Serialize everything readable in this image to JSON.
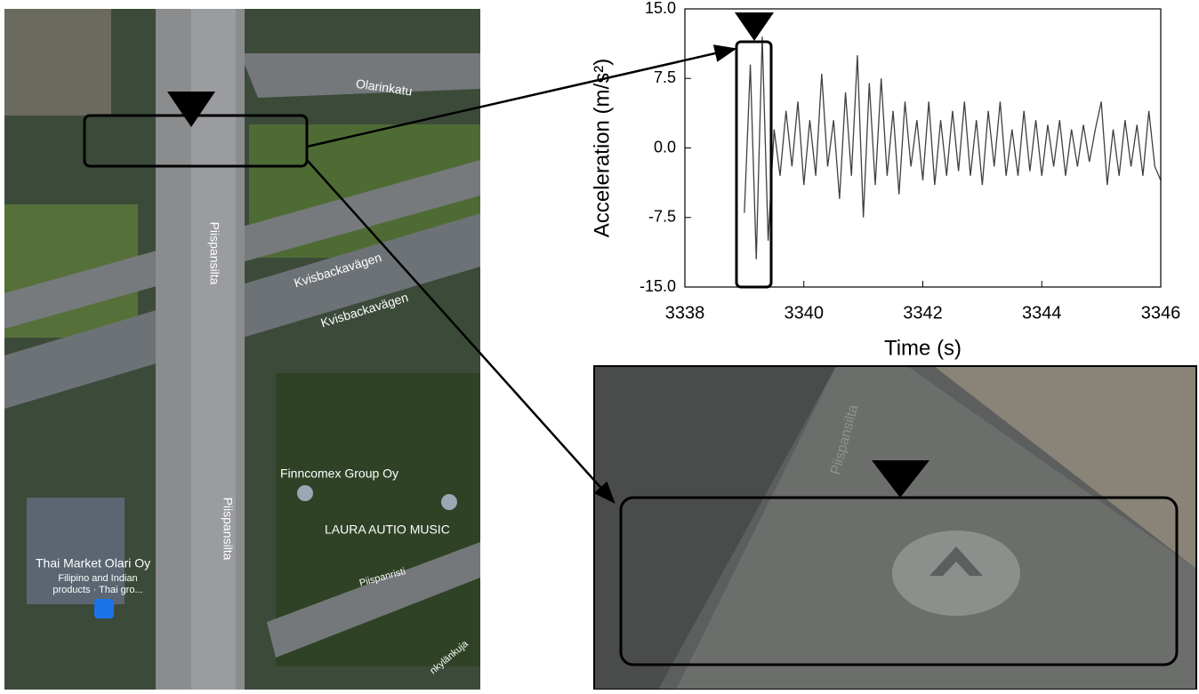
{
  "map": {
    "labels": [
      "Olarinkatu",
      "Piispansilta",
      "Kvisbackavägen",
      "Kvisbackavägen",
      "Piispansilta",
      "Finncomex Group Oy",
      "LAURA AUTIO MUSIC",
      "Thai Market Olari Oy",
      "Filipino and Indian",
      "products · Thai gro...",
      "Piispanristi",
      "nkylänkuja"
    ]
  },
  "street_view": {
    "label": "Piispansilta"
  },
  "chart_data": {
    "type": "line",
    "xlabel": "Time (s)",
    "ylabel": "Acceleration (m/s²)",
    "x": [
      3339.0,
      3339.1,
      3339.2,
      3339.3,
      3339.4,
      3339.5,
      3339.6,
      3339.7,
      3339.8,
      3339.9,
      3340.0,
      3340.1,
      3340.2,
      3340.3,
      3340.4,
      3340.5,
      3340.6,
      3340.7,
      3340.8,
      3340.9,
      3341.0,
      3341.1,
      3341.2,
      3341.3,
      3341.4,
      3341.5,
      3341.6,
      3341.7,
      3341.8,
      3341.9,
      3342.0,
      3342.1,
      3342.2,
      3342.3,
      3342.4,
      3342.5,
      3342.6,
      3342.7,
      3342.8,
      3342.9,
      3343.0,
      3343.1,
      3343.2,
      3343.3,
      3343.4,
      3343.5,
      3343.6,
      3343.7,
      3343.8,
      3343.9,
      3344.0,
      3344.1,
      3344.2,
      3344.3,
      3344.4,
      3344.5,
      3344.6,
      3344.7,
      3344.8,
      3344.9,
      3345.0,
      3345.1,
      3345.2,
      3345.3,
      3345.4,
      3345.5,
      3345.6,
      3345.7,
      3345.8,
      3345.9,
      3346.0
    ],
    "values": [
      -7,
      9,
      -12,
      12,
      -10,
      2,
      -3,
      4,
      -2,
      5,
      -4,
      3,
      -3,
      8,
      -2,
      3,
      -5.5,
      6,
      -3,
      10,
      -7.5,
      7,
      -4,
      7.5,
      -3,
      4,
      -5,
      5,
      -2,
      3,
      -3.5,
      5,
      -4,
      3,
      -3,
      4,
      -2.5,
      5,
      -3,
      3,
      -4,
      4,
      -2,
      5,
      -3,
      2,
      -3,
      4,
      -2.5,
      3,
      -3,
      2.5,
      -2,
      3,
      -3,
      2,
      -2,
      2.5,
      -1.5,
      2,
      5,
      -4,
      2,
      -3,
      3,
      -2,
      2.5,
      -3,
      4,
      -2,
      -3.5
    ],
    "color": "#404040",
    "xlim": [
      3338,
      3346
    ],
    "xticks": [
      3338,
      3340,
      3342,
      3344,
      3346
    ],
    "ylim": [
      -15,
      15
    ],
    "yticks": [
      {
        "value": -15,
        "label": "-15.0"
      },
      {
        "value": -7.5,
        "label": "-7.5"
      },
      {
        "value": 0,
        "label": "0.0"
      },
      {
        "value": 7.5,
        "label": "7.5"
      },
      {
        "value": 15,
        "label": "15.0"
      }
    ]
  }
}
